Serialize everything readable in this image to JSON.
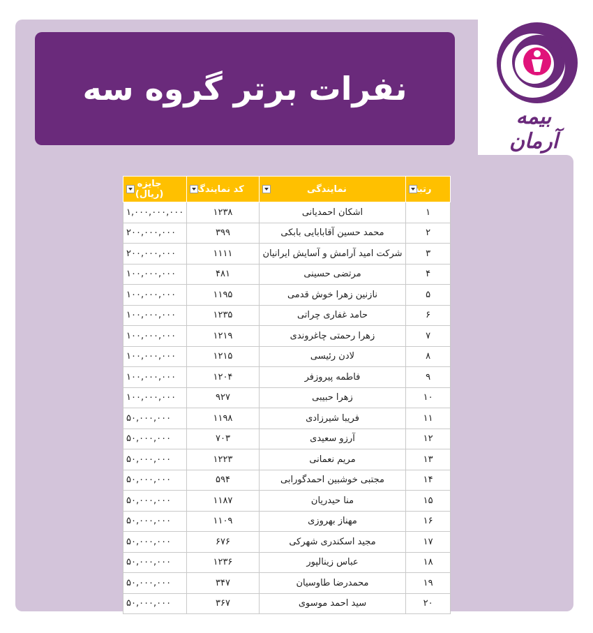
{
  "header": {
    "title": "نفرات برتر گروه سه"
  },
  "logo": {
    "text": "بیمه آرمان"
  },
  "table": {
    "columns": [
      "رتبه",
      "نمایندگی",
      "کد نمایندگی",
      "جایزه (ریال)"
    ],
    "rows": [
      [
        "۱",
        "اشکان احمدیانی",
        "۱۲۳۸",
        "۱,۰۰۰,۰۰۰,۰۰۰"
      ],
      [
        "۲",
        "محمد حسین آقابابایی بابکی",
        "۳۹۹",
        "۲۰۰,۰۰۰,۰۰۰"
      ],
      [
        "۳",
        "شرکت امید آرامش و آسایش ایرانیان",
        "۱۱۱۱",
        "۲۰۰,۰۰۰,۰۰۰"
      ],
      [
        "۴",
        "مرتضی حسینی",
        "۴۸۱",
        "۱۰۰,۰۰۰,۰۰۰"
      ],
      [
        "۵",
        "نازنین زهرا خوش قدمی",
        "۱۱۹۵",
        "۱۰۰,۰۰۰,۰۰۰"
      ],
      [
        "۶",
        "حامد غفاری چراتی",
        "۱۲۳۵",
        "۱۰۰,۰۰۰,۰۰۰"
      ],
      [
        "۷",
        "زهرا رحمتی چاغروندی",
        "۱۲۱۹",
        "۱۰۰,۰۰۰,۰۰۰"
      ],
      [
        "۸",
        "لادن رئیسی",
        "۱۲۱۵",
        "۱۰۰,۰۰۰,۰۰۰"
      ],
      [
        "۹",
        "فاطمه پیروزفر",
        "۱۲۰۴",
        "۱۰۰,۰۰۰,۰۰۰"
      ],
      [
        "۱۰",
        "زهرا حبیبی",
        "۹۲۷",
        "۱۰۰,۰۰۰,۰۰۰"
      ],
      [
        "۱۱",
        "فریبا شیرزادی",
        "۱۱۹۸",
        "۵۰,۰۰۰,۰۰۰"
      ],
      [
        "۱۲",
        "آرزو سعیدی",
        "۷۰۳",
        "۵۰,۰۰۰,۰۰۰"
      ],
      [
        "۱۳",
        "مریم نعمانی",
        "۱۲۲۳",
        "۵۰,۰۰۰,۰۰۰"
      ],
      [
        "۱۴",
        "مجتبی خوشبین احمدگورابی",
        "۵۹۴",
        "۵۰,۰۰۰,۰۰۰"
      ],
      [
        "۱۵",
        "منا حیدریان",
        "۱۱۸۷",
        "۵۰,۰۰۰,۰۰۰"
      ],
      [
        "۱۶",
        "مهناز بهروزی",
        "۱۱۰۹",
        "۵۰,۰۰۰,۰۰۰"
      ],
      [
        "۱۷",
        "مجید اسکندری شهرکی",
        "۶۷۶",
        "۵۰,۰۰۰,۰۰۰"
      ],
      [
        "۱۸",
        "عباس زینالپور",
        "۱۲۳۶",
        "۵۰,۰۰۰,۰۰۰"
      ],
      [
        "۱۹",
        "محمدرضا طاوسیان",
        "۳۴۷",
        "۵۰,۰۰۰,۰۰۰"
      ],
      [
        "۲۰",
        "سید احمد موسوی",
        "۳۶۷",
        "۵۰,۰۰۰,۰۰۰"
      ]
    ]
  }
}
